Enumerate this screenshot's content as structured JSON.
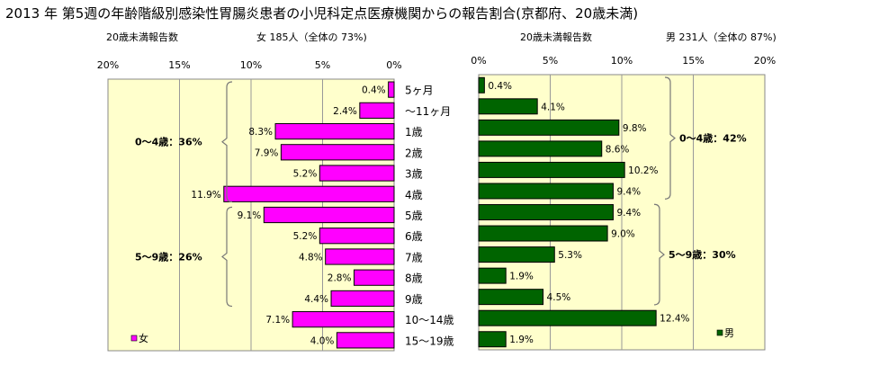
{
  "title": "2013 年 第5週の年齢階級別感染性胃腸炎患者の小児科定点医療機関からの報告割合(京都府、20歳未満)",
  "categories": [
    "5ヶ月",
    "～11ヶ月",
    "1歳",
    "2歳",
    "3歳",
    "4歳",
    "5歳",
    "6歳",
    "7歳",
    "8歳",
    "9歳",
    "10～14歳",
    "15～19歳"
  ],
  "chart_data": [
    {
      "type": "bar",
      "orientation": "horizontal",
      "direction": "right-to-left",
      "subtitle_left": "20歳未満報告数",
      "subtitle_right": "女 185人（全体の 73%)",
      "xlim": [
        0,
        20
      ],
      "xticks": [
        "20%",
        "15%",
        "10%",
        "5%",
        "0%"
      ],
      "series": [
        {
          "name": "女",
          "color": "#ff00ff",
          "values": [
            0.4,
            2.4,
            8.3,
            7.9,
            5.2,
            11.9,
            9.1,
            5.2,
            4.8,
            2.8,
            4.4,
            7.1,
            4.0
          ],
          "labels": [
            "0.4%",
            "2.4%",
            "8.3%",
            "7.9%",
            "5.2%",
            "11.9%",
            "9.1%",
            "5.2%",
            "4.8%",
            "2.8%",
            "4.4%",
            "7.1%",
            "4.0%"
          ]
        }
      ],
      "annotations": [
        {
          "text": "0～4歳：36%",
          "from_category": 0,
          "to_category": 5
        },
        {
          "text": "5～9歳：26%",
          "from_category": 6,
          "to_category": 10
        }
      ],
      "legend": {
        "text": "女",
        "placement": "bottom-left"
      },
      "grid": true
    },
    {
      "type": "bar",
      "orientation": "horizontal",
      "direction": "left-to-right",
      "subtitle_left": "20歳未満報告数",
      "subtitle_right": "男 231人（全体の 87%)",
      "xlim": [
        0,
        20
      ],
      "xticks": [
        "0%",
        "5%",
        "10%",
        "15%",
        "20%"
      ],
      "series": [
        {
          "name": "男",
          "color": "#006400",
          "values": [
            0.4,
            4.1,
            9.8,
            8.6,
            10.2,
            9.4,
            9.4,
            9.0,
            5.3,
            1.9,
            4.5,
            12.4,
            1.9
          ],
          "labels": [
            "0.4%",
            "4.1%",
            "9.8%",
            "8.6%",
            "10.2%",
            "9.4%",
            "9.4%",
            "9.0%",
            "5.3%",
            "1.9%",
            "4.5%",
            "12.4%",
            "1.9%"
          ]
        }
      ],
      "annotations": [
        {
          "text": "0～4歳：42%",
          "from_category": 0,
          "to_category": 5
        },
        {
          "text": "5～9歳：30%",
          "from_category": 6,
          "to_category": 10
        }
      ],
      "legend": {
        "text": "男",
        "placement": "bottom-right"
      },
      "grid": true
    }
  ]
}
